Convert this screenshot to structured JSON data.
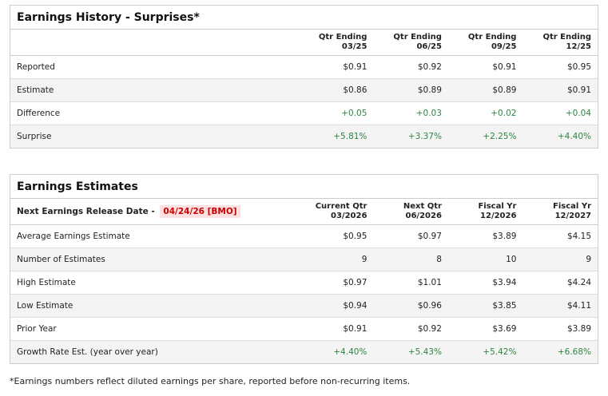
{
  "history": {
    "title": "Earnings History - Surprises*",
    "columns": [
      [
        "Qtr Ending",
        "03/25"
      ],
      [
        "Qtr Ending",
        "06/25"
      ],
      [
        "Qtr Ending",
        "09/25"
      ],
      [
        "Qtr Ending",
        "12/25"
      ]
    ],
    "rows": [
      {
        "label": "Reported",
        "values": [
          "$0.91",
          "$0.92",
          "$0.91",
          "$0.95"
        ]
      },
      {
        "label": "Estimate",
        "values": [
          "$0.86",
          "$0.89",
          "$0.89",
          "$0.91"
        ]
      },
      {
        "label": "Difference",
        "values": [
          "+0.05",
          "+0.03",
          "+0.02",
          "+0.04"
        ]
      },
      {
        "label": "Surprise",
        "values": [
          "+5.81%",
          "+3.37%",
          "+2.25%",
          "+4.40%"
        ]
      }
    ]
  },
  "estimates": {
    "title": "Earnings Estimates",
    "release_label": "Next Earnings Release Date - ",
    "release_date": "04/24/26 [BMO]",
    "columns": [
      [
        "Current Qtr",
        "03/2026"
      ],
      [
        "Next Qtr",
        "06/2026"
      ],
      [
        "Fiscal Yr",
        "12/2026"
      ],
      [
        "Fiscal Yr",
        "12/2027"
      ]
    ],
    "rows": [
      {
        "label": "Average Earnings Estimate",
        "values": [
          "$0.95",
          "$0.97",
          "$3.89",
          "$4.15"
        ]
      },
      {
        "label": "Number of Estimates",
        "values": [
          "9",
          "8",
          "10",
          "9"
        ]
      },
      {
        "label": "High Estimate",
        "values": [
          "$0.97",
          "$1.01",
          "$3.94",
          "$4.24"
        ]
      },
      {
        "label": "Low Estimate",
        "values": [
          "$0.94",
          "$0.96",
          "$3.85",
          "$4.11"
        ]
      },
      {
        "label": "Prior Year",
        "values": [
          "$0.91",
          "$0.92",
          "$3.69",
          "$3.89"
        ]
      },
      {
        "label": "Growth Rate Est. (year over year)",
        "values": [
          "+4.40%",
          "+5.43%",
          "+5.42%",
          "+6.68%"
        ]
      }
    ]
  },
  "footnote": "*Earnings numbers reflect diluted earnings per share, reported before non-recurring items.",
  "colors": {
    "positive": "#2e8540",
    "date": "#cc0000"
  }
}
